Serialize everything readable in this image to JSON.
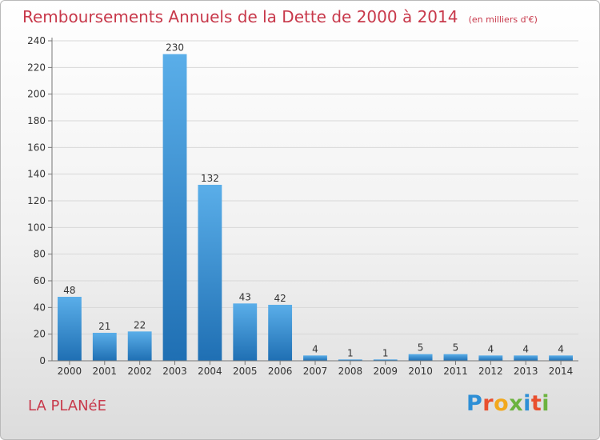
{
  "header": {
    "title": "Remboursements Annuels de la Dette de 2000 à 2014",
    "unit": "(en milliers d'€)"
  },
  "footer": {
    "place": "LA PLANéE",
    "logo_text": "Proxiti",
    "logo_colors": [
      "#2e8fd6",
      "#e94f2e",
      "#f2a81d",
      "#6cb33f",
      "#2e8fd6",
      "#e94f2e",
      "#6cb33f"
    ]
  },
  "colors": {
    "bar_top": "#5aaee9",
    "bar_bottom": "#1f6fb3",
    "title": "#c8394b",
    "grid": "#d8d8d8"
  },
  "chart_data": {
    "type": "bar",
    "categories": [
      "2000",
      "2001",
      "2002",
      "2003",
      "2004",
      "2005",
      "2006",
      "2007",
      "2008",
      "2009",
      "2010",
      "2011",
      "2012",
      "2013",
      "2014"
    ],
    "values": [
      48,
      21,
      22,
      230,
      132,
      43,
      42,
      4,
      1,
      1,
      5,
      5,
      4,
      4,
      4
    ],
    "title": "Remboursements Annuels de la Dette de 2000 à 2014",
    "xlabel": "",
    "ylabel": "",
    "ylim": [
      0,
      240
    ],
    "yticks": [
      0,
      20,
      40,
      60,
      80,
      100,
      120,
      140,
      160,
      180,
      200,
      220,
      240
    ],
    "grid": true,
    "data_labels": true
  }
}
